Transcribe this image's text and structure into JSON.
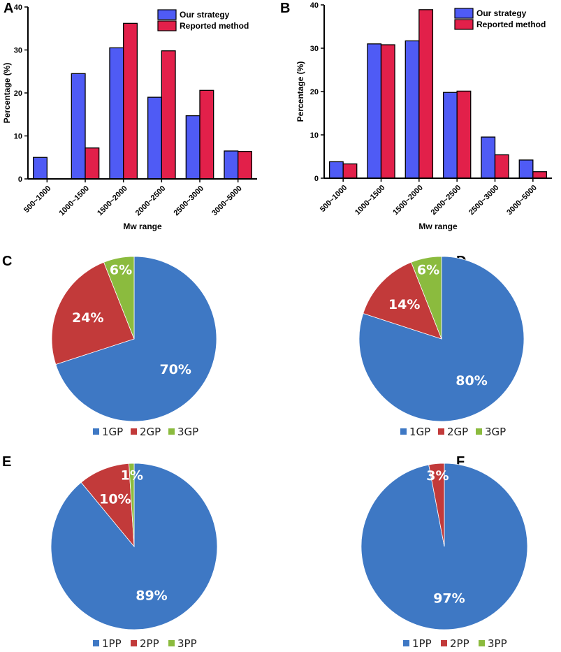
{
  "colors": {
    "strategy": "#4f5bf5",
    "reported": "#e2204a",
    "gp1": "#3e78c4",
    "gp2": "#c23a3a",
    "gp3": "#8bbb3e",
    "axis": "#000000"
  },
  "chart_data": [
    {
      "panel": "A",
      "type": "bar",
      "categories": [
        "500~1000",
        "1000~1500",
        "1500~2000",
        "2000~2500",
        "2500~3000",
        "3000~5000"
      ],
      "series": [
        {
          "name": "Our strategy",
          "values": [
            5,
            24.5,
            30.5,
            19,
            14.7,
            6.5
          ]
        },
        {
          "name": "Reported method",
          "values": [
            0,
            7.2,
            36.2,
            29.8,
            20.6,
            6.4
          ]
        }
      ],
      "xlabel": "Mw range",
      "ylabel": "Percentage (%)",
      "ylim": [
        0,
        40
      ],
      "yticks": [
        "0",
        "10",
        "20",
        "30",
        "40"
      ],
      "legend_position": "top-right"
    },
    {
      "panel": "B",
      "type": "bar",
      "categories": [
        "500~1000",
        "1000~1500",
        "1500~2000",
        "2000~2500",
        "2500~3000",
        "3000~5000"
      ],
      "series": [
        {
          "name": "Our strategy",
          "values": [
            3.8,
            31,
            31.7,
            19.8,
            9.5,
            4.2
          ]
        },
        {
          "name": "Reported method",
          "values": [
            3.3,
            30.8,
            38.9,
            20.1,
            5.4,
            1.5
          ]
        }
      ],
      "xlabel": "Mw range",
      "ylabel": "Percentage (%)",
      "ylim": [
        0,
        40
      ],
      "yticks": [
        "0",
        "10",
        "20",
        "30",
        "40"
      ],
      "legend_position": "top-right"
    },
    {
      "panel": "C",
      "type": "pie",
      "slices": [
        {
          "name": "1GP",
          "value": 70,
          "label": "70%"
        },
        {
          "name": "2GP",
          "value": 24,
          "label": "24%"
        },
        {
          "name": "3GP",
          "value": 6,
          "label": "6%"
        }
      ],
      "legend": [
        "1GP",
        "2GP",
        "3GP"
      ]
    },
    {
      "panel": "D",
      "type": "pie",
      "slices": [
        {
          "name": "1GP",
          "value": 80,
          "label": "80%"
        },
        {
          "name": "2GP",
          "value": 14,
          "label": "14%"
        },
        {
          "name": "3GP",
          "value": 6,
          "label": "6%"
        }
      ],
      "legend": [
        "1GP",
        "2GP",
        "3GP"
      ]
    },
    {
      "panel": "E",
      "type": "pie",
      "slices": [
        {
          "name": "1PP",
          "value": 89,
          "label": "89%"
        },
        {
          "name": "2PP",
          "value": 10,
          "label": "10%"
        },
        {
          "name": "3PP",
          "value": 1,
          "label": "1%"
        }
      ],
      "legend": [
        "1PP",
        "2PP",
        "3PP"
      ]
    },
    {
      "panel": "F",
      "type": "pie",
      "slices": [
        {
          "name": "1PP",
          "value": 97,
          "label": "97%"
        },
        {
          "name": "2PP",
          "value": 3,
          "label": "3%"
        },
        {
          "name": "3PP",
          "value": 0,
          "label": ""
        }
      ],
      "legend": [
        "1PP",
        "2PP",
        "3PP"
      ]
    }
  ]
}
